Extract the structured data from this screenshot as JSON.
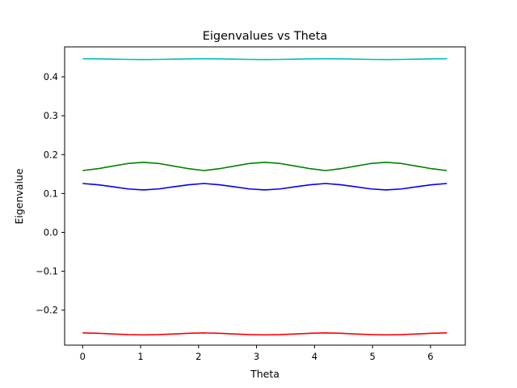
{
  "chart_data": {
    "type": "line",
    "title": "Eigenvalues vs Theta",
    "xlabel": "Theta",
    "ylabel": "Eigenvalue",
    "xlim": [
      -0.31,
      6.6
    ],
    "ylim": [
      -0.29,
      0.477
    ],
    "x_ticks": [
      0,
      1,
      2,
      3,
      4,
      5,
      6
    ],
    "y_ticks": [
      -0.2,
      -0.1,
      0.0,
      0.1,
      0.2,
      0.3,
      0.4
    ],
    "x_tick_labels": [
      "0",
      "1",
      "2",
      "3",
      "4",
      "5",
      "6"
    ],
    "y_tick_labels": [
      "−0.2",
      "−0.1",
      "0.0",
      "0.1",
      "0.2",
      "0.3",
      "0.4"
    ],
    "grid": false,
    "legend": "none",
    "x": [
      0,
      0.2618,
      0.5236,
      0.7854,
      1.0472,
      1.309,
      1.5708,
      1.8326,
      2.0944,
      2.3562,
      2.618,
      2.8798,
      3.1416,
      3.4034,
      3.6652,
      3.927,
      4.1888,
      4.4506,
      4.7124,
      4.9742,
      5.236,
      5.4978,
      5.7596,
      6.0214,
      6.2832
    ],
    "series": [
      {
        "color": "#00bfbf",
        "values": [
          0.4465,
          0.4462,
          0.4455,
          0.4448,
          0.4445,
          0.4448,
          0.4455,
          0.4462,
          0.4465,
          0.4462,
          0.4455,
          0.4448,
          0.4445,
          0.4448,
          0.4455,
          0.4462,
          0.4465,
          0.4462,
          0.4455,
          0.4448,
          0.4445,
          0.4448,
          0.4455,
          0.4462,
          0.4465
        ]
      },
      {
        "color": "#008000",
        "values": [
          0.159,
          0.1637,
          0.1705,
          0.1772,
          0.1801,
          0.1772,
          0.1705,
          0.1637,
          0.159,
          0.1637,
          0.1705,
          0.1772,
          0.1801,
          0.1772,
          0.1705,
          0.1637,
          0.159,
          0.1637,
          0.1705,
          0.1772,
          0.1801,
          0.1772,
          0.1705,
          0.1637,
          0.159
        ]
      },
      {
        "color": "#0000ff",
        "values": [
          0.1257,
          0.1225,
          0.1172,
          0.1117,
          0.1092,
          0.1117,
          0.1172,
          0.1225,
          0.1257,
          0.1225,
          0.1172,
          0.1117,
          0.1092,
          0.1117,
          0.1172,
          0.1225,
          0.1257,
          0.1225,
          0.1172,
          0.1117,
          0.1092,
          0.1117,
          0.1172,
          0.1225,
          0.1257
        ]
      },
      {
        "color": "#ff0000",
        "values": [
          -0.2585,
          -0.2595,
          -0.2612,
          -0.2628,
          -0.2635,
          -0.2628,
          -0.2612,
          -0.2595,
          -0.2585,
          -0.2595,
          -0.2612,
          -0.2628,
          -0.2635,
          -0.2628,
          -0.2612,
          -0.2595,
          -0.2585,
          -0.2595,
          -0.2612,
          -0.2628,
          -0.2635,
          -0.2628,
          -0.2612,
          -0.2595,
          -0.2585
        ]
      }
    ]
  }
}
